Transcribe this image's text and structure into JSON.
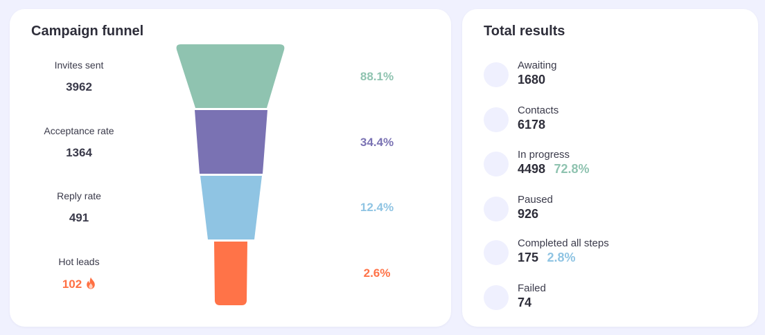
{
  "funnel": {
    "title": "Campaign funnel",
    "stages": [
      {
        "label": "Invites sent",
        "value": "3962",
        "percent": "88.1%",
        "color": "#8fc3b0"
      },
      {
        "label": "Acceptance rate",
        "value": "1364",
        "percent": "34.4%",
        "color": "#7a72b3"
      },
      {
        "label": "Reply rate",
        "value": "491",
        "percent": "12.4%",
        "color": "#8fc4e3"
      },
      {
        "label": "Hot leads",
        "value": "102",
        "percent": "2.6%",
        "color": "#ff7348",
        "icon": "flame-icon"
      }
    ]
  },
  "results": {
    "title": "Total results",
    "items": [
      {
        "label": "Awaiting",
        "value": "1680",
        "percent": ""
      },
      {
        "label": "Contacts",
        "value": "6178",
        "percent": ""
      },
      {
        "label": "In progress",
        "value": "4498",
        "percent": "72.8%",
        "percent_color": "#8fc3b0"
      },
      {
        "label": "Paused",
        "value": "926",
        "percent": ""
      },
      {
        "label": "Completed all steps",
        "value": "175",
        "percent": "2.8%",
        "percent_color": "#8fc4e3"
      },
      {
        "label": "Failed",
        "value": "74",
        "percent": ""
      }
    ]
  }
}
